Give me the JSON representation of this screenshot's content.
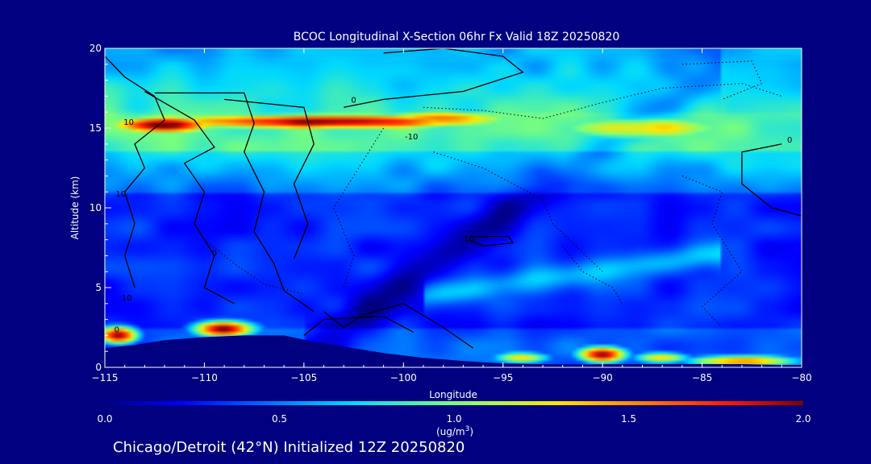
{
  "chart_data": {
    "type": "heatmap",
    "title": "BCOC Longitudinal X-Section 06hr  Fx Valid 18Z 20250820",
    "xlabel": "Longitude",
    "ylabel": "Altitude (km)",
    "xlim": [
      -115,
      -80
    ],
    "ylim": [
      0,
      20
    ],
    "x_ticks": [
      "-115",
      "-110",
      "-105",
      "-100",
      "-95",
      "-90",
      "-85",
      "-80"
    ],
    "y_ticks": [
      "0",
      "5",
      "10",
      "15",
      "20"
    ],
    "colorbar": {
      "ticks": [
        "0.0",
        "0.5",
        "1.0",
        "1.5",
        "2.0"
      ],
      "range": [
        0,
        2
      ],
      "unit_label": "(ug/m",
      "unit_sup": "3",
      "unit_close": ")"
    },
    "terrain": [
      {
        "lon": -115,
        "alt": 1.2
      },
      {
        "lon": -113.5,
        "alt": 1.4
      },
      {
        "lon": -112,
        "alt": 1.7
      },
      {
        "lon": -110,
        "alt": 1.9
      },
      {
        "lon": -108,
        "alt": 2.0
      },
      {
        "lon": -106,
        "alt": 2.0
      },
      {
        "lon": -104.5,
        "alt": 1.6
      },
      {
        "lon": -103,
        "alt": 1.3
      },
      {
        "lon": -101,
        "alt": 0.9
      },
      {
        "lon": -99,
        "alt": 0.6
      },
      {
        "lon": -97,
        "alt": 0.4
      },
      {
        "lon": -95,
        "alt": 0.25
      },
      {
        "lon": -93,
        "alt": 0.2
      },
      {
        "lon": -91,
        "alt": 0.18
      },
      {
        "lon": -89,
        "alt": 0.2
      },
      {
        "lon": -87,
        "alt": 0.2
      },
      {
        "lon": -85,
        "alt": 0.2
      },
      {
        "lon": -83,
        "alt": 0.2
      },
      {
        "lon": -81,
        "alt": 0.15
      },
      {
        "lon": -80,
        "alt": 0.15
      }
    ],
    "field_features": [
      {
        "lon": -104,
        "alt": 15.4,
        "value": 2.0,
        "sx": 10,
        "sy": 0.55
      },
      {
        "lon": -112,
        "alt": 15.2,
        "value": 2.0,
        "sx": 3,
        "sy": 0.6
      },
      {
        "lon": -98,
        "alt": 15.6,
        "value": 1.6,
        "sx": 4,
        "sy": 0.6
      },
      {
        "lon": -88,
        "alt": 15.0,
        "value": 1.3,
        "sx": 6,
        "sy": 0.9
      },
      {
        "lon": -109,
        "alt": 2.4,
        "value": 2.0,
        "sx": 1.6,
        "sy": 0.55
      },
      {
        "lon": -114.3,
        "alt": 2.0,
        "value": 2.0,
        "sx": 1.1,
        "sy": 0.6
      },
      {
        "lon": -90,
        "alt": 0.8,
        "value": 2.0,
        "sx": 1.3,
        "sy": 0.55
      },
      {
        "lon": -83,
        "alt": 0.4,
        "value": 1.5,
        "sx": 3,
        "sy": 0.4
      },
      {
        "lon": -94,
        "alt": 0.6,
        "value": 1.3,
        "sx": 1.5,
        "sy": 0.4
      },
      {
        "lon": -87,
        "alt": 0.6,
        "value": 1.4,
        "sx": 1.5,
        "sy": 0.4
      }
    ],
    "contour_labels": [
      {
        "text": "0",
        "lon": -102.5,
        "alt": 16.6
      },
      {
        "text": "-10",
        "lon": -99.6,
        "alt": 14.3
      },
      {
        "text": "10",
        "lon": -113.8,
        "alt": 15.2
      },
      {
        "text": "10",
        "lon": -114.2,
        "alt": 10.7
      },
      {
        "text": "0",
        "lon": -80.6,
        "alt": 14.1
      },
      {
        "text": "10",
        "lon": -96.7,
        "alt": 7.9
      },
      {
        "text": "0",
        "lon": -109.5,
        "alt": 7.0
      },
      {
        "text": "10",
        "lon": -113.9,
        "alt": 4.2
      },
      {
        "text": "0",
        "lon": -114.4,
        "alt": 2.2
      }
    ]
  },
  "footer": {
    "text": "Chicago/Detroit (42°N) Initialized 12Z 20250820"
  }
}
